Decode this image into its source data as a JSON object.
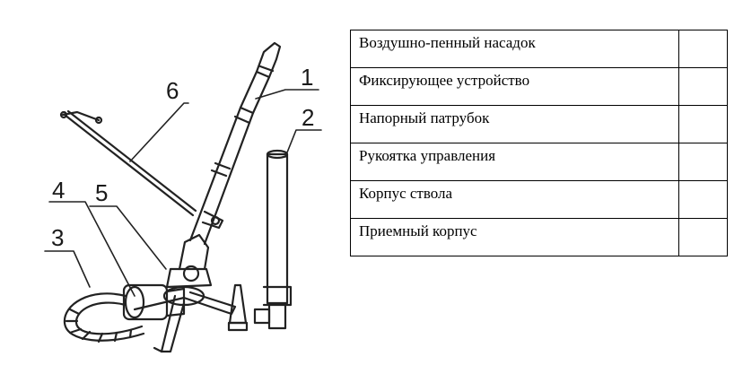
{
  "figure": {
    "callouts": [
      "1",
      "2",
      "3",
      "4",
      "5",
      "6"
    ]
  },
  "table": {
    "rows": [
      {
        "name": "Воздушно-пенный насадок",
        "answer": ""
      },
      {
        "name": "Фиксирующее устройство",
        "answer": ""
      },
      {
        "name": "Напорный патрубок",
        "answer": ""
      },
      {
        "name": "Рукоятка управления",
        "answer": ""
      },
      {
        "name": "Корпус ствола",
        "answer": ""
      },
      {
        "name": "Приемный корпус",
        "answer": ""
      }
    ]
  }
}
